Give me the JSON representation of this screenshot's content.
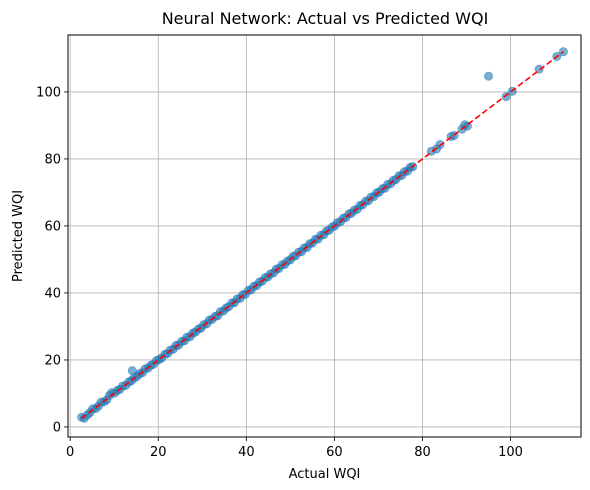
{
  "chart_data": {
    "type": "scatter",
    "title": "Neural Network: Actual vs Predicted WQI",
    "xlabel": "Actual WQI",
    "ylabel": "Predicted WQI",
    "xlim": [
      -0.5,
      116
    ],
    "ylim": [
      -3,
      117
    ],
    "xticks": [
      0,
      20,
      40,
      60,
      80,
      100
    ],
    "yticks": [
      0,
      20,
      40,
      60,
      80,
      100
    ],
    "grid": true,
    "point_color": "#1f77b4",
    "reference_line": {
      "from": [
        2.5,
        2.5
      ],
      "to": [
        112,
        112
      ],
      "color": "#ff0000",
      "style": "dashed"
    },
    "points": [
      [
        2.6,
        2.9
      ],
      [
        3.2,
        2.6
      ],
      [
        3.9,
        3.6
      ],
      [
        4.5,
        4.3
      ],
      [
        5.1,
        5.4
      ],
      [
        5.8,
        5.5
      ],
      [
        6.4,
        6.2
      ],
      [
        7.0,
        7.4
      ],
      [
        7.7,
        7.5
      ],
      [
        8.3,
        8.1
      ],
      [
        8.9,
        9.4
      ],
      [
        9.4,
        10.2
      ],
      [
        10.1,
        10.1
      ],
      [
        10.7,
        10.9
      ],
      [
        11.3,
        11.2
      ],
      [
        11.9,
        12.2
      ],
      [
        12.6,
        12.4
      ],
      [
        13.3,
        13.4
      ],
      [
        13.9,
        13.8
      ],
      [
        14.1,
        16.8
      ],
      [
        14.5,
        14.6
      ],
      [
        15.2,
        15.1
      ],
      [
        15.8,
        15.9
      ],
      [
        16.4,
        16.2
      ],
      [
        17.0,
        17.3
      ],
      [
        17.7,
        17.6
      ],
      [
        18.3,
        18.4
      ],
      [
        18.9,
        18.7
      ],
      [
        19.6,
        19.8
      ],
      [
        20.2,
        20.1
      ],
      [
        20.8,
        20.6
      ],
      [
        21.5,
        21.7
      ],
      [
        22.1,
        21.9
      ],
      [
        22.7,
        22.9
      ],
      [
        23.4,
        23.2
      ],
      [
        24.0,
        24.3
      ],
      [
        24.6,
        24.4
      ],
      [
        25.3,
        25.5
      ],
      [
        25.9,
        25.7
      ],
      [
        26.5,
        26.8
      ],
      [
        27.2,
        26.9
      ],
      [
        27.8,
        28.0
      ],
      [
        28.4,
        28.3
      ],
      [
        29.1,
        29.2
      ],
      [
        29.7,
        29.5
      ],
      [
        30.3,
        30.5
      ],
      [
        31.0,
        30.8
      ],
      [
        31.6,
        31.9
      ],
      [
        32.2,
        32.1
      ],
      [
        32.9,
        33.0
      ],
      [
        33.5,
        33.2
      ],
      [
        34.1,
        34.4
      ],
      [
        34.8,
        34.6
      ],
      [
        35.4,
        35.5
      ],
      [
        36.0,
        35.9
      ],
      [
        36.7,
        37.0
      ],
      [
        37.3,
        37.1
      ],
      [
        37.9,
        38.2
      ],
      [
        38.6,
        38.4
      ],
      [
        39.2,
        39.5
      ],
      [
        39.8,
        39.6
      ],
      [
        40.5,
        40.8
      ],
      [
        41.1,
        40.9
      ],
      [
        41.7,
        42.0
      ],
      [
        42.4,
        42.2
      ],
      [
        43.0,
        43.3
      ],
      [
        43.6,
        43.5
      ],
      [
        44.3,
        44.6
      ],
      [
        44.9,
        44.8
      ],
      [
        45.5,
        45.7
      ],
      [
        46.2,
        46.0
      ],
      [
        46.8,
        47.1
      ],
      [
        47.4,
        47.3
      ],
      [
        48.1,
        48.4
      ],
      [
        48.7,
        48.5
      ],
      [
        49.3,
        49.5
      ],
      [
        50.0,
        49.9
      ],
      [
        50.6,
        50.9
      ],
      [
        51.2,
        51.1
      ],
      [
        51.9,
        52.2
      ],
      [
        52.5,
        52.3
      ],
      [
        53.1,
        53.4
      ],
      [
        53.8,
        53.6
      ],
      [
        54.4,
        54.7
      ],
      [
        55.0,
        54.9
      ],
      [
        55.7,
        56.0
      ],
      [
        56.3,
        56.1
      ],
      [
        56.9,
        57.2
      ],
      [
        57.6,
        57.4
      ],
      [
        58.2,
        58.5
      ],
      [
        58.8,
        58.7
      ],
      [
        59.5,
        59.7
      ],
      [
        60.1,
        60.0
      ],
      [
        60.7,
        61.0
      ],
      [
        61.4,
        61.3
      ],
      [
        62.0,
        62.3
      ],
      [
        62.6,
        62.5
      ],
      [
        63.3,
        63.6
      ],
      [
        63.9,
        63.8
      ],
      [
        64.5,
        64.7
      ],
      [
        65.2,
        65.0
      ],
      [
        65.8,
        66.1
      ],
      [
        66.4,
        66.3
      ],
      [
        67.1,
        67.4
      ],
      [
        67.7,
        67.5
      ],
      [
        68.3,
        68.6
      ],
      [
        69.0,
        68.8
      ],
      [
        69.6,
        69.9
      ],
      [
        70.2,
        70.1
      ],
      [
        70.9,
        71.1
      ],
      [
        71.5,
        71.3
      ],
      [
        72.1,
        72.4
      ],
      [
        72.8,
        72.6
      ],
      [
        73.4,
        73.6
      ],
      [
        74.0,
        73.9
      ],
      [
        74.7,
        75.0
      ],
      [
        75.3,
        75.1
      ],
      [
        75.9,
        76.2
      ],
      [
        76.6,
        76.4
      ],
      [
        77.2,
        77.5
      ],
      [
        77.8,
        77.7
      ],
      [
        82.0,
        82.3
      ],
      [
        83.2,
        83.0
      ],
      [
        84.0,
        84.3
      ],
      [
        86.5,
        86.7
      ],
      [
        87.2,
        87.0
      ],
      [
        89.0,
        88.9
      ],
      [
        89.6,
        90.2
      ],
      [
        90.2,
        89.8
      ],
      [
        95.0,
        104.7
      ],
      [
        99.0,
        98.6
      ],
      [
        100.4,
        100.2
      ],
      [
        106.5,
        106.8
      ],
      [
        110.5,
        110.6
      ],
      [
        112.0,
        112.0
      ]
    ]
  }
}
